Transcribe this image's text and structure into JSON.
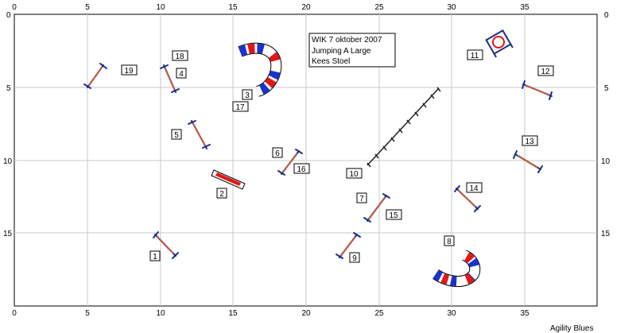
{
  "course_info": [
    "WIK 7 oktober 2007",
    "Jumping  A Large",
    "Kees Stoel"
  ],
  "credit": "Agility Blues",
  "x_ticks": [
    "0",
    "5",
    "10",
    "15",
    "20",
    "25",
    "30",
    "35"
  ],
  "y_ticks": [
    "0",
    "5",
    "10",
    "15"
  ],
  "obstacle_labels": [
    "1",
    "2",
    "3",
    "4",
    "5",
    "6",
    "7",
    "8",
    "9",
    "10",
    "11",
    "12",
    "13",
    "14",
    "16",
    "17",
    "18",
    "19",
    "15"
  ],
  "colors": {
    "grid": "#c8c8c8",
    "bar": "#c85a3a",
    "stand": "#1b2f86",
    "tunnel_blue": "#1a33cc",
    "tunnel_red": "#e01818",
    "tunnel_white": "#ffffff"
  }
}
